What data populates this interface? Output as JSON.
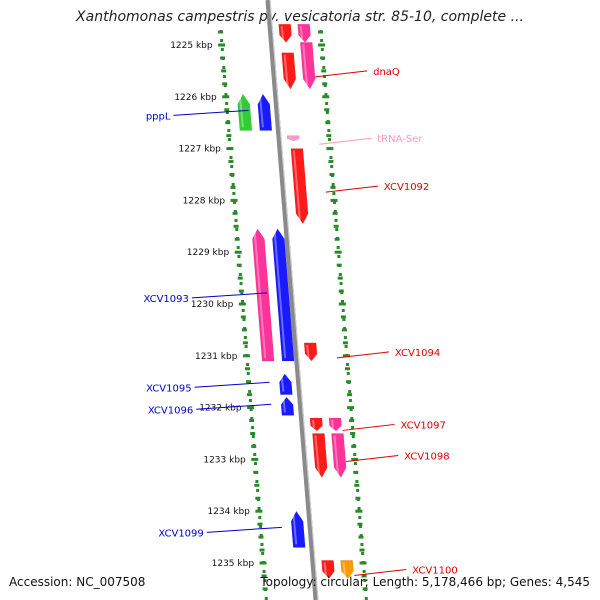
{
  "title": "Xanthomonas campestris pv. vesicatoria str. 85-10, complete ...",
  "footer": {
    "accession": "Accession: NC_007508",
    "topology": "Topology: circular; Length: 5,178,466 bp; Genes: 4,545"
  },
  "colors": {
    "backbone": "#8a8a8a",
    "tick_ring": "#2a8a2a",
    "gene_red": "#ff1a1a",
    "gene_magenta": "#ff3399",
    "gene_blue": "#1a1aff",
    "gene_green": "#33cc33",
    "gene_orange": "#ff9900",
    "trna_pink": "#ff99cc",
    "label_red": "#dd0000",
    "label_blue": "#0000cc",
    "label_pink": "#ff99bb"
  },
  "ticks": [
    {
      "kbp": 1225,
      "label": "1225 kbp"
    },
    {
      "kbp": 1226,
      "label": "1226 kbp"
    },
    {
      "kbp": 1227,
      "label": "1227 kbp"
    },
    {
      "kbp": 1228,
      "label": "1228 kbp"
    },
    {
      "kbp": 1229,
      "label": "1229 kbp"
    },
    {
      "kbp": 1230,
      "label": "1230 kbp"
    },
    {
      "kbp": 1231,
      "label": "1231 kbp"
    },
    {
      "kbp": 1232,
      "label": "1232 kbp"
    },
    {
      "kbp": 1233,
      "label": "1233 kbp"
    },
    {
      "kbp": 1234,
      "label": "1234 kbp"
    },
    {
      "kbp": 1235,
      "label": "1235 kbp"
    }
  ],
  "features": [
    {
      "name": "dnaQ",
      "start": 1224.6,
      "end": 1224.95,
      "lane": "fwd-inner",
      "color": "gene_red",
      "label_color": "label_red",
      "labeled": false
    },
    {
      "name": "dnaQ-b",
      "start": 1224.6,
      "end": 1224.95,
      "lane": "fwd-outer",
      "color": "gene_magenta",
      "labeled": false
    },
    {
      "name": "dnaQ",
      "start": 1225.15,
      "end": 1225.85,
      "lane": "fwd-inner",
      "color": "gene_red",
      "label": "dnaQ",
      "label_color": "label_red",
      "labeled": true
    },
    {
      "name": "dnaQ-m",
      "start": 1224.95,
      "end": 1225.85,
      "lane": "fwd-outer",
      "color": "gene_magenta",
      "labeled": false
    },
    {
      "name": "pppL-green",
      "start": 1225.95,
      "end": 1226.65,
      "lane": "rev-outer",
      "color": "gene_green",
      "labeled": false
    },
    {
      "name": "pppL",
      "start": 1225.95,
      "end": 1226.65,
      "lane": "rev-inner",
      "color": "gene_blue",
      "label": "pppL",
      "label_color": "label_blue",
      "labeled": true
    },
    {
      "name": "tRNA-Ser",
      "start": 1226.75,
      "end": 1226.85,
      "lane": "fwd-inner",
      "color": "trna_pink",
      "label": "tRNA-Ser",
      "label_color": "label_pink",
      "labeled": true
    },
    {
      "name": "XCV1092",
      "start": 1227.0,
      "end": 1228.45,
      "lane": "fwd-inner",
      "color": "gene_red",
      "label": "XCV1092",
      "label_color": "label_red",
      "labeled": true
    },
    {
      "name": "XCV1093-m",
      "start": 1228.55,
      "end": 1231.1,
      "lane": "rev-outer",
      "color": "gene_magenta",
      "labeled": false
    },
    {
      "name": "XCV1093",
      "start": 1228.55,
      "end": 1231.1,
      "lane": "rev-inner",
      "color": "gene_blue",
      "label": "XCV1093",
      "label_color": "label_blue",
      "labeled": true
    },
    {
      "name": "XCV1094",
      "start": 1230.75,
      "end": 1231.1,
      "lane": "fwd-inner",
      "color": "gene_red",
      "label": "XCV1094",
      "label_color": "label_red",
      "labeled": true
    },
    {
      "name": "XCV1095",
      "start": 1231.35,
      "end": 1231.75,
      "lane": "rev-inner",
      "color": "gene_blue",
      "label": "XCV1095",
      "label_color": "label_blue",
      "labeled": true
    },
    {
      "name": "XCV1096",
      "start": 1231.8,
      "end": 1232.15,
      "lane": "rev-inner",
      "color": "gene_blue",
      "label": "XCV1096",
      "label_color": "label_blue",
      "labeled": true
    },
    {
      "name": "XCV1097",
      "start": 1232.2,
      "end": 1232.45,
      "lane": "fwd-inner",
      "color": "gene_red",
      "label": "XCV1097",
      "label_color": "label_red",
      "labeled": true
    },
    {
      "name": "XCV1097-m",
      "start": 1232.2,
      "end": 1232.45,
      "lane": "fwd-outer",
      "color": "gene_magenta",
      "labeled": false
    },
    {
      "name": "XCV1098",
      "start": 1232.5,
      "end": 1233.35,
      "lane": "fwd-inner",
      "color": "gene_red",
      "label": "XCV1098",
      "label_color": "label_red",
      "labeled": true
    },
    {
      "name": "XCV1098-m",
      "start": 1232.5,
      "end": 1233.35,
      "lane": "fwd-outer",
      "color": "gene_magenta",
      "labeled": false
    },
    {
      "name": "XCV1099",
      "start": 1234.0,
      "end": 1234.7,
      "lane": "rev-inner",
      "color": "gene_blue",
      "label": "XCV1099",
      "label_color": "label_blue",
      "labeled": true
    },
    {
      "name": "XCV1100",
      "start": 1234.95,
      "end": 1235.3,
      "lane": "fwd-inner",
      "color": "gene_red",
      "label": "XCV1100",
      "label_color": "label_red",
      "labeled": true
    },
    {
      "name": "XCV1100-o",
      "start": 1234.95,
      "end": 1235.3,
      "lane": "fwd-outer",
      "color": "gene_orange",
      "labeled": false
    }
  ]
}
